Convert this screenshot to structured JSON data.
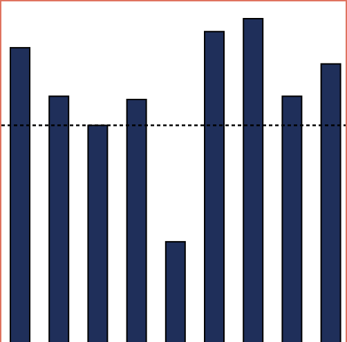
{
  "chart_data": {
    "type": "bar",
    "title": "",
    "xlabel": "",
    "ylabel": "",
    "categories": [
      "",
      "",
      "",
      "",
      "",
      "",
      "",
      "",
      ""
    ],
    "values": [
      0.91,
      0.76,
      0.67,
      0.75,
      0.31,
      0.96,
      1.0,
      0.76,
      0.86
    ],
    "ylim": [
      0,
      1.0
    ],
    "reference_line": {
      "value": 0.67,
      "style": "dashed",
      "color": "#000000"
    },
    "grid": false,
    "legend": "none",
    "colors": {
      "bar_fill": "#1f2f5a",
      "bar_stroke": "#000000",
      "frame_border": "#e0735f",
      "background": "#ffffff"
    }
  }
}
